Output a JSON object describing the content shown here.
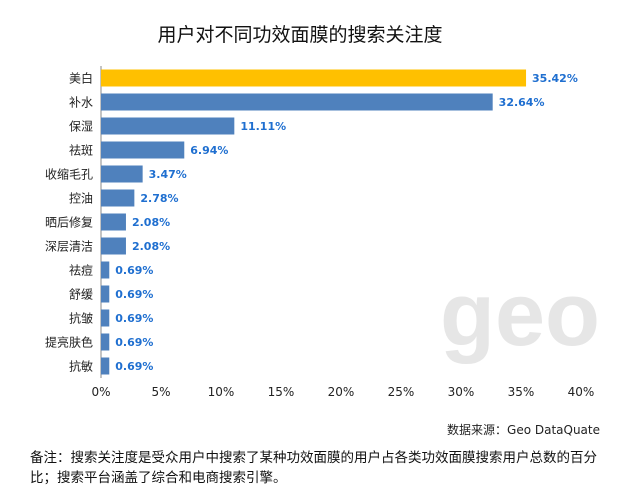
{
  "title": "用户对不同功效面膜的搜索关注度",
  "source": "数据来源：Geo DataQuate",
  "note": "备注：搜索关注度是受众用户中搜索了某种功效面膜的用户占各类功效面膜搜索用户总数的百分比；搜索平台涵盖了综合和电商搜索引擎。",
  "watermark": "geo",
  "colors": {
    "highlight": "#FFC000",
    "bar": "#4F81BD",
    "label": "#1F6FD0",
    "grid": "#d9d9d9"
  },
  "chart_data": {
    "type": "bar",
    "orientation": "horizontal",
    "categories": [
      "美白",
      "补水",
      "保湿",
      "祛斑",
      "收缩毛孔",
      "控油",
      "晒后修复",
      "深层清洁",
      "祛痘",
      "舒缓",
      "抗皱",
      "提亮肤色",
      "抗敏"
    ],
    "values": [
      35.42,
      32.64,
      11.11,
      6.94,
      3.47,
      2.78,
      2.08,
      2.08,
      0.69,
      0.69,
      0.69,
      0.69,
      0.69
    ],
    "value_labels": [
      "35.42%",
      "32.64%",
      "11.11%",
      "6.94%",
      "3.47%",
      "2.78%",
      "2.08%",
      "2.08%",
      "0.69%",
      "0.69%",
      "0.69%",
      "0.69%",
      "0.69%"
    ],
    "xlim": [
      0,
      40
    ],
    "xticks": [
      "0%",
      "5%",
      "10%",
      "15%",
      "20%",
      "25%",
      "30%",
      "35%",
      "40%"
    ],
    "highlight_index": 0,
    "grid": false
  }
}
